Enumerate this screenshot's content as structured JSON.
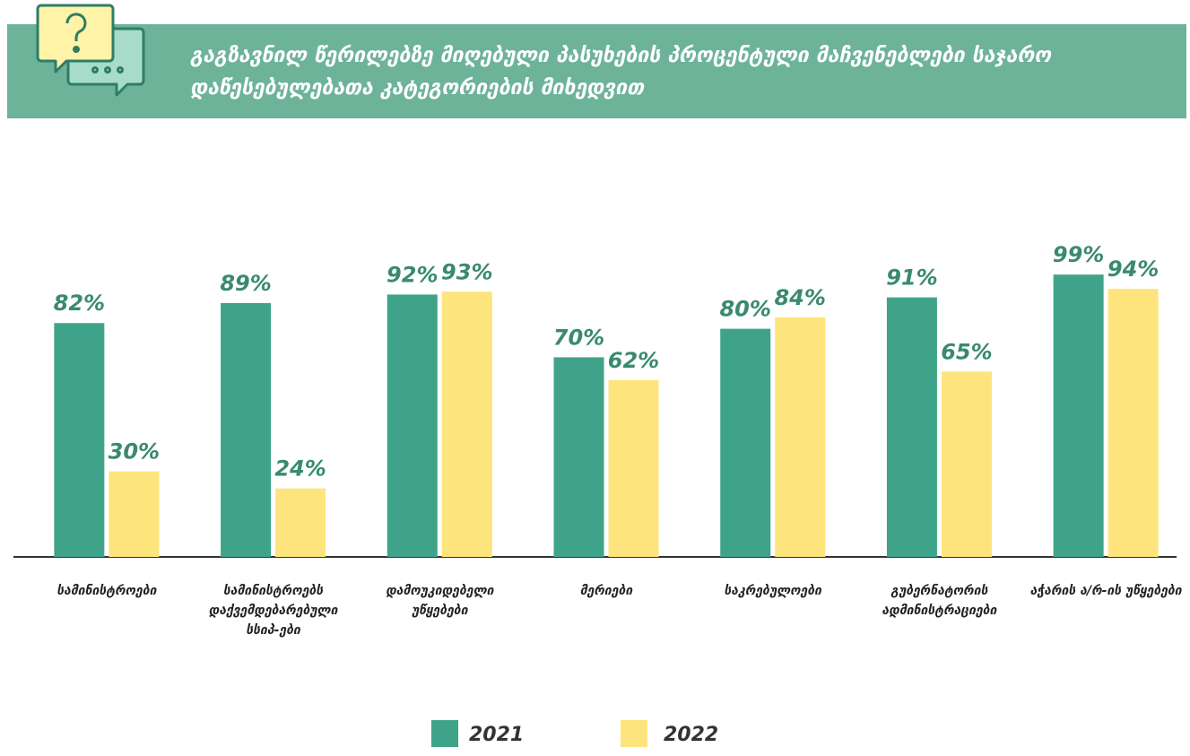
{
  "chart_data": {
    "type": "bar",
    "title": "გაგზავნილ წერილებზე მიღებული პასუხების პროცენტული მაჩვენებლები საჯარო დაწესებულებათა კატეგორიების მიხედვით",
    "categories": [
      "სამინისტროები",
      "სამინისტროებს დაქვემდებარებული სსიპ-ები",
      "დამოუკიდებელი უწყებები",
      "მერიები",
      "საკრებულოები",
      "გუბერნატორის ადმინისტრაციები",
      "აჭარის ა/რ-ის უწყებები"
    ],
    "series": [
      {
        "name": "2021",
        "color": "#3fa38a",
        "values": [
          82,
          89,
          92,
          70,
          80,
          91,
          99
        ],
        "value_labels": [
          "82%",
          "89%",
          "92%",
          "70%",
          "80%",
          "91%",
          "99%"
        ]
      },
      {
        "name": "2022",
        "color": "#fee47c",
        "values": [
          30,
          24,
          93,
          62,
          84,
          65,
          94
        ],
        "value_labels": [
          "30%",
          "24%",
          "93%",
          "62%",
          "84%",
          "65%",
          "94%"
        ]
      }
    ],
    "ylim": [
      0,
      100
    ],
    "legend": "bottom"
  }
}
